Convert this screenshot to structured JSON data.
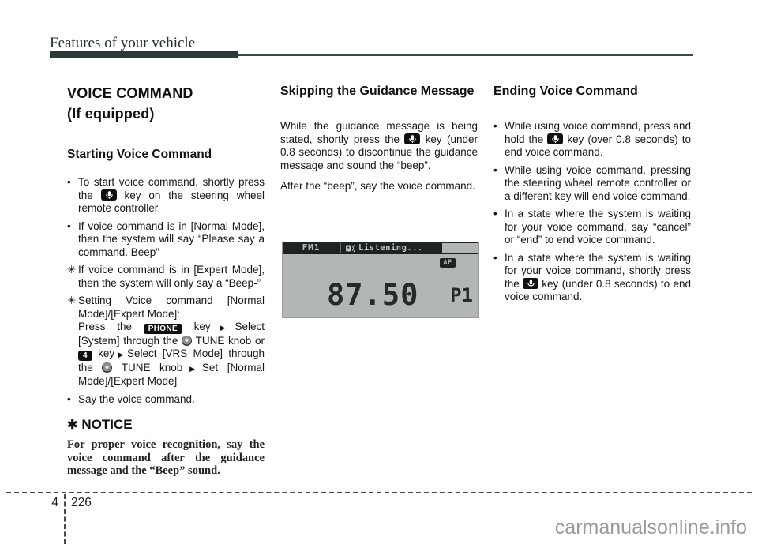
{
  "page": {
    "header": "Features of your vehicle",
    "chapter_number": "4",
    "page_number": "226",
    "watermark": "carmanualsonline.info"
  },
  "glyphs": {
    "bullet": "•",
    "flower": "✳",
    "notice_star": "✱",
    "arrow": "▶",
    "mic_key_icon": "voice-mic-key-icon",
    "tune_knob_icon": "tune-knob-icon"
  },
  "display": {
    "band": "FM1",
    "status": "Listening...",
    "badge": "AF",
    "frequency": "87.50",
    "preset": "P1"
  },
  "columns": [
    {
      "id": "left",
      "blocks": [
        {
          "style": "h1",
          "name": "voice-command-title",
          "text": "VOICE COMMAND\n(If equipped)"
        },
        {
          "style": "h2",
          "name": "starting-voice-command-heading",
          "text": "Starting Voice Command"
        },
        {
          "style": "bullet",
          "name": "start-bullet-1",
          "marker": "•",
          "segments": [
            {
              "t": "x",
              "v": "To start voice command, shortly press the "
            },
            {
              "t": "mic"
            },
            {
              "t": "x",
              "v": " key on the steering wheel remote controller."
            }
          ]
        },
        {
          "style": "bullet",
          "name": "start-bullet-2",
          "marker": "•",
          "segments": [
            {
              "t": "x",
              "v": "If voice command is in [Normal Mode], then the system will say “Please say a command. Beep”"
            }
          ]
        },
        {
          "style": "bullet",
          "name": "expert-mode-note",
          "marker": "✳",
          "segments": [
            {
              "t": "x",
              "v": "If voice command is in [Expert Mode], then the system will only say a “Beep-”"
            }
          ]
        },
        {
          "style": "bullet",
          "name": "setting-voice-command-note",
          "marker": "✳",
          "segments": [
            {
              "t": "x",
              "v": "Setting Voice command [Normal Mode]/[Expert Mode]:"
            },
            {
              "t": "br"
            },
            {
              "t": "x",
              "v": "Press the "
            },
            {
              "t": "key",
              "v": "PHONE",
              "name": "phone-key-badge"
            },
            {
              "t": "x",
              "v": " key"
            },
            {
              "t": "arrow"
            },
            {
              "t": "x",
              "v": "Select [System] through the "
            },
            {
              "t": "knob"
            },
            {
              "t": "x",
              "v": " TUNE knob or "
            },
            {
              "t": "key",
              "v": "4",
              "name": "number-4-key-badge"
            },
            {
              "t": "x",
              "v": " key"
            },
            {
              "t": "arrow"
            },
            {
              "t": "x",
              "v": "Select [VRS Mode] through the "
            },
            {
              "t": "knob"
            },
            {
              "t": "x",
              "v": " TUNE knob"
            },
            {
              "t": "arrow"
            },
            {
              "t": "x",
              "v": "Set [Normal Mode]/[Expert Mode]"
            }
          ]
        },
        {
          "style": "bullet",
          "name": "start-bullet-3",
          "marker": "•",
          "segments": [
            {
              "t": "x",
              "v": "Say the voice command."
            }
          ]
        },
        {
          "style": "noticeh",
          "name": "notice-heading",
          "marker": "✱",
          "text": "NOTICE"
        },
        {
          "style": "noticeb",
          "name": "notice-body",
          "segments": [
            {
              "t": "x",
              "v": "For proper voice recognition, say the voice command after the guidance message and the “Beep” sound."
            }
          ]
        }
      ]
    },
    {
      "id": "mid",
      "blocks": [
        {
          "style": "colh",
          "name": "skipping-guidance-heading",
          "text": "Skipping the Guidance Message"
        },
        {
          "style": "para",
          "name": "skipping-para-1",
          "segments": [
            {
              "t": "x",
              "v": "While the guidance message is being stated, shortly press the "
            },
            {
              "t": "mic"
            },
            {
              "t": "x",
              "v": " key (under 0.8 seconds) to discontinue the guidance message and sound the “beep”."
            }
          ]
        },
        {
          "style": "para",
          "name": "skipping-para-2",
          "segments": [
            {
              "t": "x",
              "v": "After the “beep”, say the voice command."
            }
          ]
        }
      ]
    },
    {
      "id": "right",
      "blocks": [
        {
          "style": "colh",
          "name": "ending-voice-command-heading",
          "text": "Ending Voice Command"
        },
        {
          "style": "bullet",
          "name": "ending-bullet-1",
          "marker": "•",
          "segments": [
            {
              "t": "x",
              "v": "While using voice command, press and hold the "
            },
            {
              "t": "mic"
            },
            {
              "t": "x",
              "v": " key (over 0.8 seconds) to end voice command."
            }
          ]
        },
        {
          "style": "bullet",
          "name": "ending-bullet-2",
          "marker": "•",
          "segments": [
            {
              "t": "x",
              "v": "While using voice command, pressing the steering wheel remote controller or a different key will end voice command."
            }
          ]
        },
        {
          "style": "bullet",
          "name": "ending-bullet-3",
          "marker": "•",
          "segments": [
            {
              "t": "x",
              "v": "In a state where the system is waiting for your voice command, say “cancel” or “end” to end voice command."
            }
          ]
        },
        {
          "style": "bullet",
          "name": "ending-bullet-4",
          "marker": "•",
          "segments": [
            {
              "t": "x",
              "v": "In a state where the system is waiting for your voice command, shortly press the "
            },
            {
              "t": "mic"
            },
            {
              "t": "x",
              "v": " key (under 0.8 seconds) to end voice command."
            }
          ]
        }
      ]
    }
  ]
}
